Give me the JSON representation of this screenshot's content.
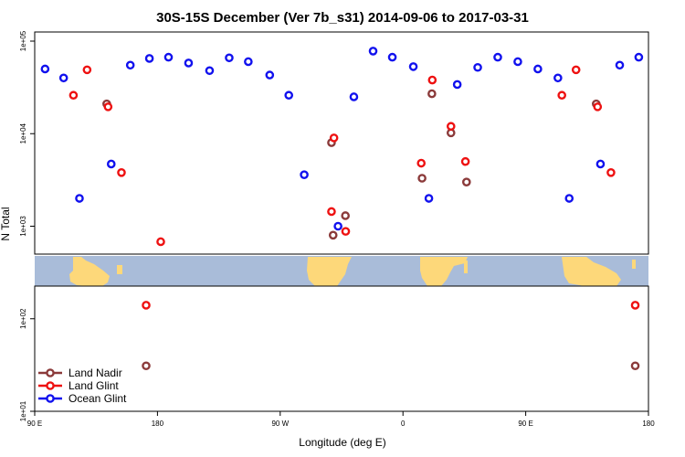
{
  "chart_data": {
    "type": "scatter",
    "title": "30S-15S December (Ver 7b_s31)   2014-09-06 to 2017-03-31",
    "xlabel": "Longitude (deg E)",
    "ylabel": "N Total",
    "x_ticks": [
      {
        "value": 0,
        "label": "90 E"
      },
      {
        "value": 90,
        "label": "180"
      },
      {
        "value": 180,
        "label": "90 W"
      },
      {
        "value": 270,
        "label": "0"
      },
      {
        "value": 360,
        "label": "90 E"
      },
      {
        "value": 450,
        "label": "180"
      }
    ],
    "xlim": [
      0,
      450
    ],
    "y_scale": "log",
    "y_ticks": [
      {
        "value": 10,
        "label": "1e+01"
      },
      {
        "value": 100,
        "label": "1e+02"
      },
      {
        "value": 1000,
        "label": "1e+03"
      },
      {
        "value": 10000,
        "label": "1e+04"
      },
      {
        "value": 100000,
        "label": "1e+05"
      }
    ],
    "ylim": [
      10,
      100000
    ],
    "legend_position": "bottom-left",
    "series": [
      {
        "name": "Land Nadir",
        "color": "#8b3a3a",
        "points": [
          [
            52.8,
            21000
          ],
          [
            81.7,
            31
          ],
          [
            217.6,
            8000
          ],
          [
            218.8,
            800
          ],
          [
            227.8,
            1300
          ],
          [
            284.0,
            3300
          ],
          [
            291.2,
            27000
          ],
          [
            305.2,
            10200
          ],
          [
            316.6,
            3000
          ],
          [
            411.7,
            21000
          ],
          [
            440.3,
            31
          ]
        ]
      },
      {
        "name": "Land Glint",
        "color": "#ee1111",
        "points": [
          [
            28.4,
            26000
          ],
          [
            38.4,
            49000
          ],
          [
            53.8,
            19500
          ],
          [
            63.6,
            3800
          ],
          [
            81.7,
            140
          ],
          [
            92.4,
            680
          ],
          [
            219.4,
            9000
          ],
          [
            217.6,
            1440
          ],
          [
            228.0,
            880
          ],
          [
            283.4,
            4800
          ],
          [
            291.5,
            38000
          ],
          [
            305.2,
            12000
          ],
          [
            315.8,
            5000
          ],
          [
            386.5,
            26000
          ],
          [
            396.9,
            49000
          ],
          [
            412.7,
            19500
          ],
          [
            422.5,
            3800
          ],
          [
            440.3,
            140
          ]
        ]
      },
      {
        "name": "Ocean Glint",
        "color": "#1111ee",
        "points": [
          [
            7.6,
            50000
          ],
          [
            21.2,
            40000
          ],
          [
            32.8,
            2000
          ],
          [
            56.1,
            4700
          ],
          [
            70.1,
            55000
          ],
          [
            84.1,
            65000
          ],
          [
            98.1,
            67000
          ],
          [
            112.8,
            58000
          ],
          [
            128.2,
            48000
          ],
          [
            142.6,
            66000
          ],
          [
            156.6,
            60000
          ],
          [
            172.3,
            43000
          ],
          [
            186.3,
            26000
          ],
          [
            197.6,
            3600
          ],
          [
            222.4,
            1000
          ],
          [
            234.0,
            25000
          ],
          [
            248.1,
            78000
          ],
          [
            262.2,
            67000
          ],
          [
            277.6,
            53000
          ],
          [
            289.0,
            2000
          ],
          [
            309.8,
            34000
          ],
          [
            324.8,
            52000
          ],
          [
            339.5,
            67000
          ],
          [
            354.2,
            60000
          ],
          [
            368.9,
            50000
          ],
          [
            383.6,
            40000
          ],
          [
            391.9,
            2000
          ],
          [
            414.8,
            4700
          ],
          [
            428.9,
            55000
          ],
          [
            442.9,
            67000
          ]
        ]
      }
    ]
  }
}
